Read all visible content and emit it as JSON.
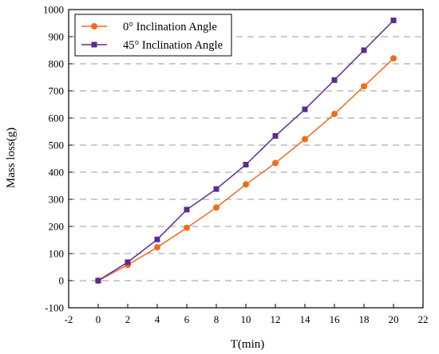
{
  "chart_data": {
    "type": "line",
    "xlabel": "T(min)",
    "ylabel": "Mass loss(g)",
    "xlim": [
      -2,
      22
    ],
    "ylim": [
      -100,
      1000
    ],
    "x_ticks": [
      -2,
      0,
      2,
      4,
      6,
      8,
      10,
      12,
      14,
      16,
      18,
      20,
      22
    ],
    "y_ticks": [
      -100,
      0,
      100,
      200,
      300,
      400,
      500,
      600,
      700,
      800,
      900,
      1000
    ],
    "grid": {
      "horizontal": true,
      "style": "dashed",
      "color": "#999999"
    },
    "legend_position": "top-left",
    "x": [
      0,
      2,
      4,
      6,
      8,
      10,
      12,
      14,
      16,
      18,
      20
    ],
    "series": [
      {
        "name": "0°  Inclination Angle",
        "marker": "circle",
        "color": "#F26B1D",
        "values": [
          0,
          58,
          123,
          195,
          270,
          355,
          434,
          522,
          615,
          717,
          820
        ]
      },
      {
        "name": "45° Inclination Angle",
        "marker": "square",
        "color": "#5B2C8F",
        "values": [
          0,
          68,
          152,
          262,
          338,
          428,
          534,
          632,
          740,
          850,
          960
        ]
      }
    ]
  }
}
